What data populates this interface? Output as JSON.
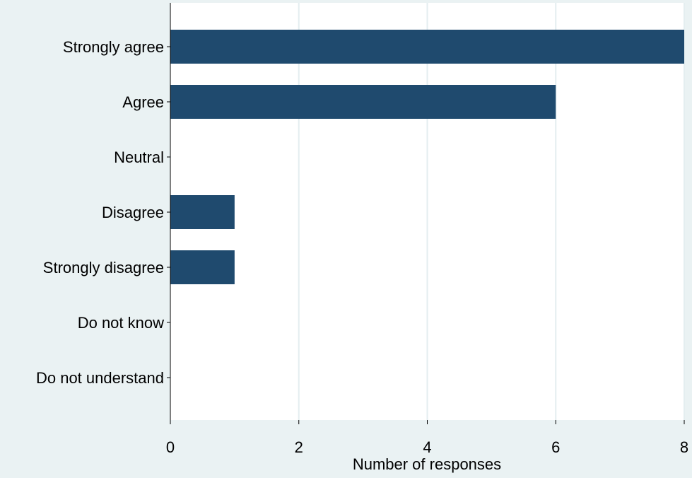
{
  "chart_data": {
    "type": "bar",
    "orientation": "horizontal",
    "categories": [
      "Strongly agree",
      "Agree",
      "Neutral",
      "Disagree",
      "Strongly disagree",
      "Do not know",
      "Do not understand"
    ],
    "values": [
      8,
      6,
      0,
      1,
      1,
      0,
      0
    ],
    "xlabel": "Number of responses",
    "ylabel": "",
    "xlim": [
      0,
      8
    ],
    "xticks": [
      0,
      2,
      4,
      6,
      8
    ],
    "grid": true,
    "colors": {
      "bar": "#1f4a6e",
      "plot_background": "#ffffff",
      "page_background": "#eaf2f3",
      "grid": "#e4eef0"
    }
  }
}
